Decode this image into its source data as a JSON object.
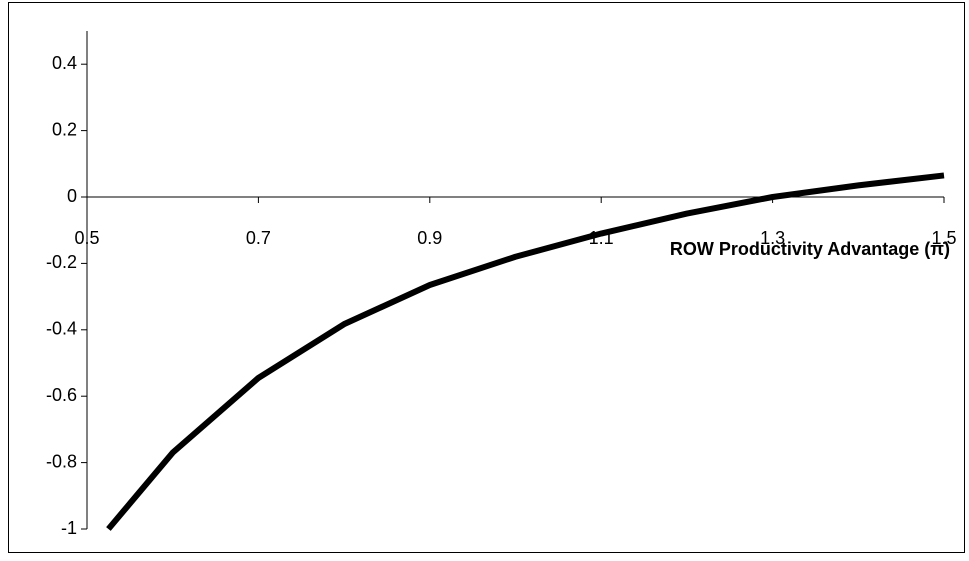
{
  "chart_data": {
    "type": "line",
    "x_label": "ROW Productivity Advantage (π)",
    "x": [
      0.525,
      0.6,
      0.7,
      0.8,
      0.9,
      1.0,
      1.1,
      1.2,
      1.3,
      1.4,
      1.5
    ],
    "series": [
      {
        "color": "#000000",
        "values": [
          -1,
          -0.77,
          -0.545,
          -0.383,
          -0.265,
          -0.18,
          -0.11,
          -0.05,
          0.0,
          0.035,
          0.065
        ]
      }
    ],
    "xlim": [
      0.5,
      1.5
    ],
    "xticks": [
      0.5,
      0.7,
      0.9,
      1.1,
      1.3,
      1.5
    ],
    "ylim": [
      -1,
      0.5
    ],
    "yticks": [
      -1,
      -0.8,
      -0.6,
      -0.4,
      -0.2,
      0,
      0.2,
      0.4
    ]
  }
}
